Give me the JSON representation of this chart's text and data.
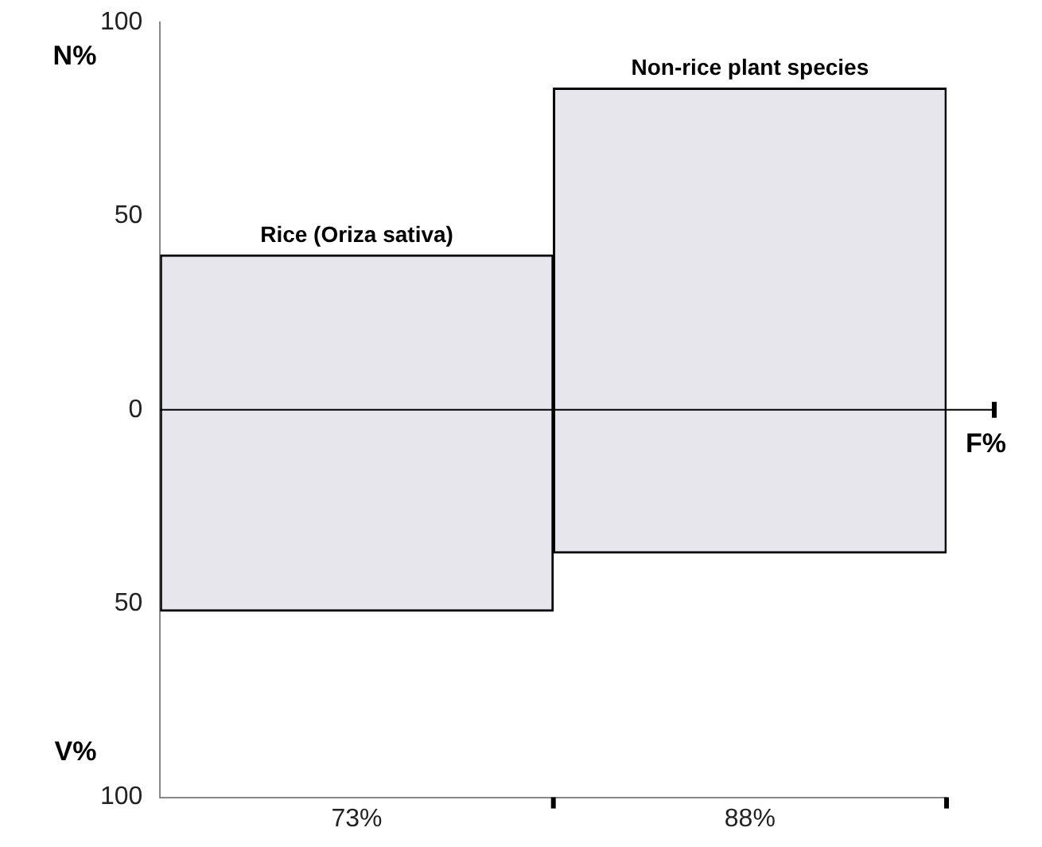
{
  "chart_data": {
    "type": "bar",
    "categories": [
      "73%",
      "88%"
    ],
    "base": [
      -52,
      -37
    ],
    "values": [
      92,
      120
    ],
    "color": "#e6e6ec",
    "ylim": [
      -100,
      100
    ],
    "yticks": [
      {
        "value": -100,
        "label": "100"
      },
      {
        "value": -50,
        "label": "50"
      },
      0,
      50,
      100
    ],
    "ylabel": "N%",
    "xlabel": "F%",
    "grid": false,
    "legend": false,
    "ref_lines": [
      {
        "axis": "y",
        "value": 0,
        "color": "#000000"
      }
    ],
    "annotations": [
      {
        "text": "Rice (Oriza sativa)",
        "x": "73%",
        "y": 40
      },
      {
        "text": "Non-rice plant species",
        "x": "88%",
        "y": 83
      },
      "V%"
    ]
  }
}
